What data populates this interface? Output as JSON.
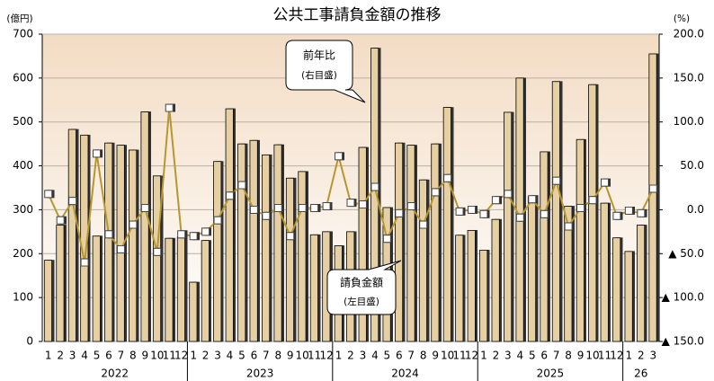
{
  "chart_data": {
    "type": "combo",
    "title": "公共工事請負金額の推移",
    "y_unit": "(億円)",
    "y2_unit": "(%)",
    "categories": [
      "1",
      "2",
      "3",
      "4",
      "5",
      "6",
      "7",
      "8",
      "9",
      "10",
      "11",
      "12",
      "1",
      "2",
      "3",
      "4",
      "5",
      "6",
      "7",
      "8",
      "9",
      "10",
      "11",
      "12",
      "1",
      "2",
      "3",
      "4",
      "5",
      "6",
      "7",
      "8",
      "9",
      "10",
      "11",
      "12",
      "1",
      "2",
      "3",
      "4",
      "5",
      "6",
      "7",
      "8",
      "9",
      "10",
      "11",
      "12",
      "1",
      "2",
      "3"
    ],
    "years": [
      "2022",
      "2023",
      "2024",
      "2025",
      "26"
    ],
    "ylim": [
      0,
      700
    ],
    "yticks": [
      0,
      100,
      200,
      300,
      400,
      500,
      600,
      700
    ],
    "y2lim": [
      -150,
      200
    ],
    "y2ticks": [
      {
        "value": 200,
        "label": "200.0"
      },
      {
        "value": 150,
        "label": "150.0"
      },
      {
        "value": 100,
        "label": "100.0"
      },
      {
        "value": 50,
        "label": "50.0"
      },
      {
        "value": 0,
        "label": "0.0"
      },
      {
        "value": -50,
        "label": "▲ 50.0"
      },
      {
        "value": -100,
        "label": "▲ 100.0"
      },
      {
        "value": -150,
        "label": "▲ 150.0"
      }
    ],
    "grid": true,
    "series": [
      {
        "name": "請負金額",
        "note": "(左目盛)",
        "type": "bar",
        "axis": "y",
        "color": "#e6cfa2",
        "values": [
          185,
          265,
          483,
          470,
          240,
          452,
          447,
          436,
          523,
          377,
          235,
          238,
          135,
          230,
          410,
          530,
          450,
          458,
          425,
          448,
          372,
          387,
          243,
          250,
          218,
          250,
          442,
          668,
          305,
          452,
          447,
          368,
          450,
          533,
          242,
          253,
          208,
          278,
          522,
          600,
          330,
          432,
          592,
          308,
          460,
          585,
          315,
          236,
          205,
          265,
          655
        ]
      },
      {
        "name": "前年比",
        "note": "(右目盛)",
        "type": "line",
        "axis": "y2",
        "color": "#b8962e",
        "values": [
          18,
          -12,
          10,
          -60,
          64,
          -28,
          -45,
          -17,
          2,
          -48,
          116,
          -28,
          -30,
          -25,
          -12,
          16,
          28,
          0,
          -7,
          2,
          -30,
          2,
          2,
          4,
          61,
          8,
          6,
          26,
          -33,
          -4,
          4,
          -17,
          20,
          36,
          -2,
          0,
          -5,
          11,
          18,
          -9,
          12,
          -5,
          33,
          -19,
          2,
          11,
          31,
          -7,
          -1,
          -4,
          24
        ]
      }
    ]
  }
}
